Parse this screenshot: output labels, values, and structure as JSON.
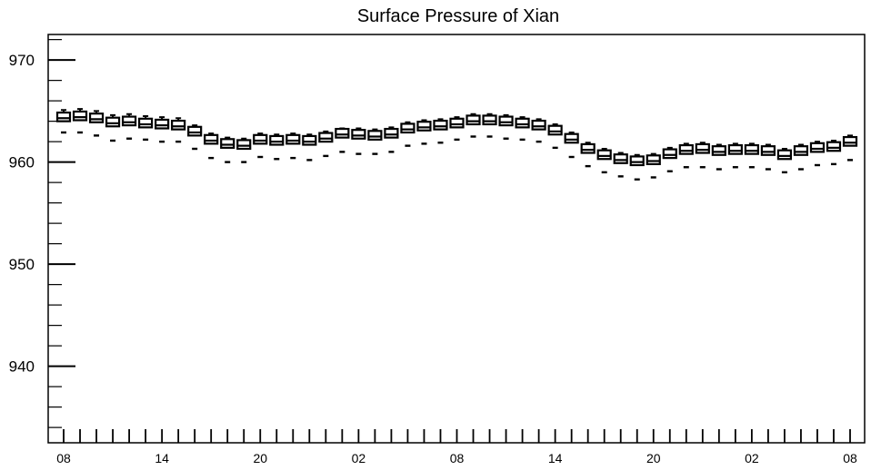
{
  "chart_data": {
    "type": "box",
    "title": "Surface Pressure of Xian",
    "xlabel": "",
    "ylabel": "",
    "ylim": [
      932.5,
      972.5
    ],
    "y_ticks": [
      940,
      950,
      960,
      970
    ],
    "x_tick_labels": [
      "08",
      "14",
      "20",
      "02",
      "08",
      "14",
      "20",
      "02",
      "08"
    ],
    "x_tick_label_positions": [
      0,
      6,
      12,
      18,
      24,
      30,
      36,
      42,
      48
    ],
    "x_steps": 49,
    "grid": false,
    "series": [
      {
        "median": [
          964.3,
          964.4,
          964.2,
          963.8,
          963.9,
          963.7,
          963.6,
          963.5,
          962.9,
          962.1,
          961.7,
          961.6,
          962.1,
          962.0,
          962.1,
          962.0,
          962.3,
          962.7,
          962.6,
          962.5,
          962.7,
          963.2,
          963.4,
          963.5,
          963.7,
          964.0,
          964.0,
          963.9,
          963.7,
          963.5,
          963.0,
          962.2,
          961.2,
          960.6,
          960.2,
          960.0,
          960.1,
          960.7,
          961.1,
          961.2,
          961.0,
          961.1,
          961.1,
          961.0,
          960.6,
          961.0,
          961.3,
          961.4,
          961.9
        ],
        "min": [
          962.9,
          962.9,
          962.6,
          962.1,
          962.3,
          962.2,
          962.0,
          962.0,
          961.3,
          960.4,
          960.0,
          960.0,
          960.5,
          960.3,
          960.4,
          960.2,
          960.6,
          961.0,
          960.8,
          960.8,
          961.0,
          961.6,
          961.8,
          961.9,
          962.2,
          962.5,
          962.5,
          962.3,
          962.2,
          962.0,
          961.4,
          960.5,
          959.6,
          959.0,
          958.6,
          958.3,
          958.5,
          959.1,
          959.5,
          959.5,
          959.3,
          959.5,
          959.5,
          959.3,
          959.0,
          959.3,
          959.7,
          959.8,
          960.2
        ],
        "max": [
          965.1,
          965.2,
          965.0,
          964.6,
          964.7,
          964.5,
          964.4,
          964.3,
          963.6,
          962.8,
          962.4,
          962.3,
          962.8,
          962.7,
          962.8,
          962.7,
          963.0,
          963.3,
          963.3,
          963.2,
          963.4,
          963.9,
          964.1,
          964.2,
          964.4,
          964.7,
          964.7,
          964.6,
          964.4,
          964.2,
          963.7,
          962.9,
          961.9,
          961.3,
          960.9,
          960.7,
          960.8,
          961.4,
          961.8,
          961.9,
          961.7,
          961.8,
          961.8,
          961.7,
          961.3,
          961.7,
          962.0,
          962.1,
          962.6
        ]
      }
    ]
  }
}
